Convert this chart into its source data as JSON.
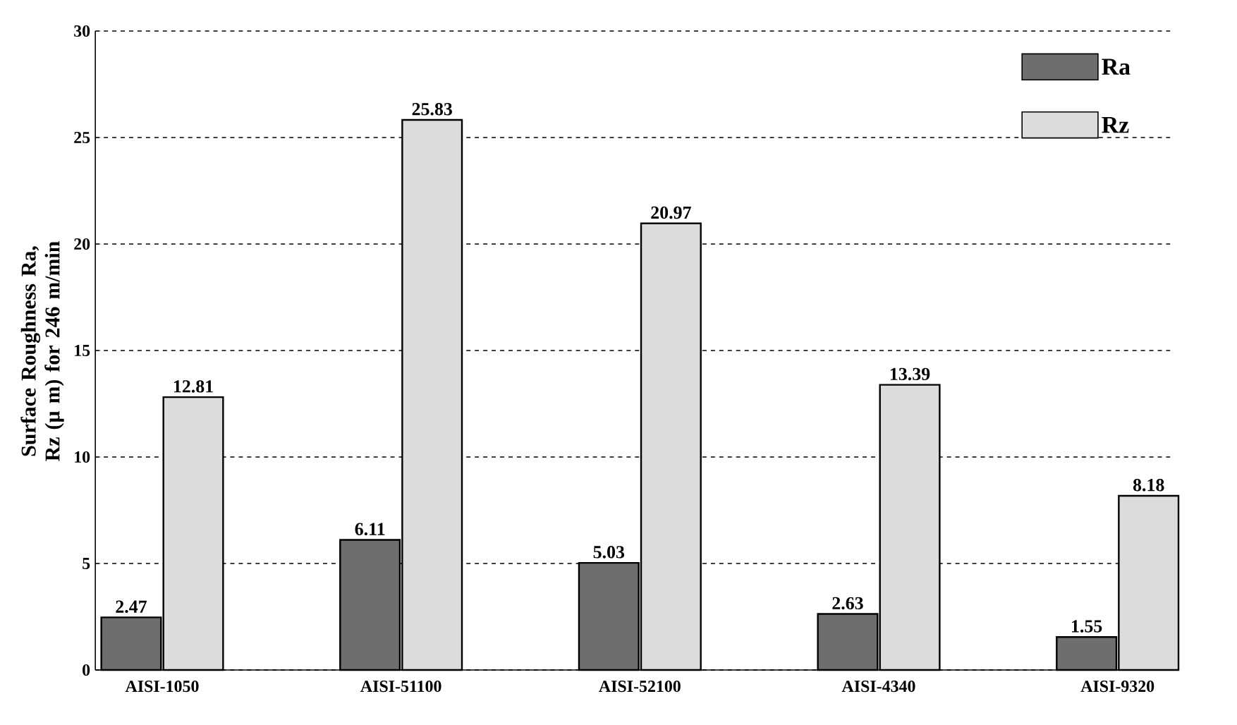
{
  "chart_data": {
    "type": "bar",
    "ylabel": "Surface Roughness  Ra, Rz (µ m) for 246 m/min",
    "categories": [
      "AISI-1050",
      "AISI-51100",
      "AISI-52100",
      "AISI-4340",
      "AISI-9320"
    ],
    "series": [
      {
        "name": "Ra",
        "color": "#6e6e6e",
        "values": [
          2.47,
          6.11,
          5.03,
          2.63,
          1.55
        ]
      },
      {
        "name": "Rz",
        "color": "#dcdcdc",
        "values": [
          12.81,
          25.83,
          20.97,
          13.39,
          8.18
        ]
      }
    ],
    "ylim": [
      0,
      30
    ],
    "yticks": [
      0,
      5,
      10,
      15,
      20,
      25,
      30
    ],
    "grid": "y",
    "legend": "top right",
    "data_labels": true
  }
}
